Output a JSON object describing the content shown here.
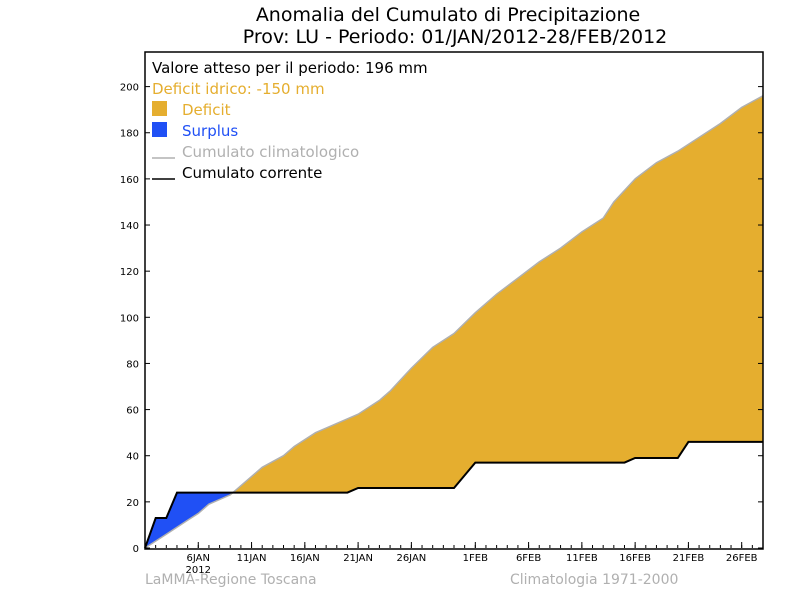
{
  "chart_data": {
    "type": "area",
    "title_line1": "Anomalia del Cumulato di Precipitazione",
    "title_line2": "Prov: LU - Periodo: 01/JAN/2012-28/FEB/2012",
    "annotations": {
      "expected": "Valore atteso per il periodo: 196 mm",
      "deficit_label": "Deficit idrico: -150 mm"
    },
    "legend": [
      {
        "label": "Deficit",
        "kind": "box",
        "color": "#e5ae2f"
      },
      {
        "label": "Surplus",
        "kind": "box",
        "color": "#2050f5"
      },
      {
        "label": "Cumulato climatologico",
        "kind": "line",
        "color": "#b0b0b0"
      },
      {
        "label": "Cumulato corrente",
        "kind": "line",
        "color": "#000000"
      }
    ],
    "x_ticks": [
      {
        "day": 6,
        "label": "6JAN"
      },
      {
        "day": 11,
        "label": "11JAN"
      },
      {
        "day": 16,
        "label": "16JAN"
      },
      {
        "day": 21,
        "label": "21JAN"
      },
      {
        "day": 26,
        "label": "26JAN"
      },
      {
        "day": 32,
        "label": "1FEB"
      },
      {
        "day": 37,
        "label": "6FEB"
      },
      {
        "day": 42,
        "label": "11FEB"
      },
      {
        "day": 47,
        "label": "16FEB"
      },
      {
        "day": 52,
        "label": "21FEB"
      },
      {
        "day": 57,
        "label": "26FEB"
      }
    ],
    "year_label": "2012",
    "xlim": [
      1,
      59
    ],
    "ylim": [
      0,
      215
    ],
    "y_ticks": [
      0,
      20,
      40,
      60,
      80,
      100,
      120,
      140,
      160,
      180,
      200
    ],
    "series": [
      {
        "name": "Cumulato climatologico",
        "color": "#b0b0b0",
        "x": [
          1,
          3,
          5,
          6,
          7,
          9,
          10,
          12,
          14,
          15,
          17,
          19,
          21,
          23,
          24,
          26,
          28,
          30,
          32,
          34,
          36,
          38,
          40,
          42,
          44,
          45,
          47,
          49,
          51,
          53,
          55,
          57,
          59
        ],
        "y": [
          0,
          6,
          12,
          15,
          19,
          23,
          27,
          35,
          40,
          44,
          50,
          54,
          58,
          64,
          68,
          78,
          87,
          93,
          102,
          110,
          117,
          124,
          130,
          137,
          143,
          150,
          160,
          167,
          172,
          178,
          184,
          191,
          196
        ]
      },
      {
        "name": "Cumulato corrente",
        "color": "#000000",
        "x": [
          1,
          2,
          3,
          4,
          5,
          20,
          21,
          30,
          32,
          46,
          47,
          51,
          52,
          59
        ],
        "y": [
          0,
          13,
          13,
          24,
          24,
          24,
          26,
          26,
          37,
          37,
          39,
          39,
          46,
          46
        ]
      }
    ],
    "fills": {
      "deficit_color": "#e5ae2f",
      "surplus_color": "#2050f5"
    }
  },
  "footer": {
    "left": "LaMMA-Regione Toscana",
    "right": "Climatologia 1971-2000"
  }
}
